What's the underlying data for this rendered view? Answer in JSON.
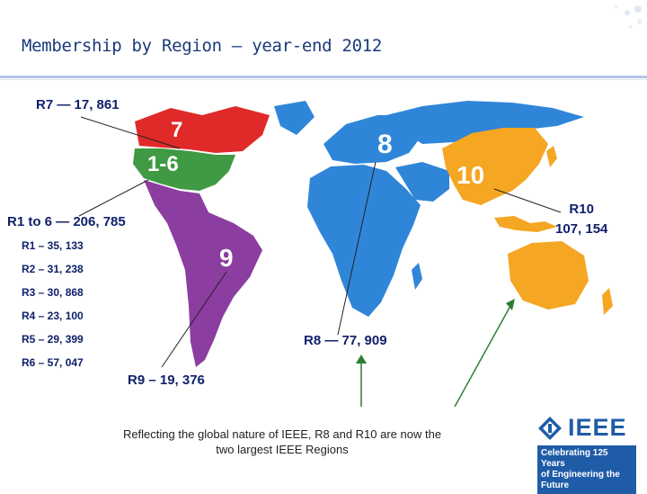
{
  "slide": {
    "title": "Membership by Region – year-end 2012"
  },
  "map": {
    "region_numbers": [
      "7",
      "1-6",
      "8",
      "10",
      "9"
    ],
    "region_colors": {
      "r7": "#e02a2a",
      "r1_6": "#3f9a43",
      "r8": "#2f86d8",
      "r9": "#8b3da0",
      "r10": "#f5a623"
    }
  },
  "labels": {
    "r7": "R7 — 17, 861",
    "r1_6": "R1 to 6 — 206, 785",
    "r1": "R1 – 35, 133",
    "r2": "R2 – 31, 238",
    "r3": "R3 – 30, 868",
    "r4": "R4 – 23, 100",
    "r5": "R5 – 29, 399",
    "r6": "R6 – 57, 047",
    "r8": "R8 — 77, 909",
    "r9": "R9 – 19, 376",
    "r10_name": "R10",
    "r10_value": "107, 154"
  },
  "note": "Reflecting the global nature of IEEE, R8 and R10 are now the two largest IEEE Regions",
  "logo": {
    "word": "IEEE",
    "tagline_1": "Celebrating 125 Years",
    "tagline_2": "of Engineering the Future"
  }
}
